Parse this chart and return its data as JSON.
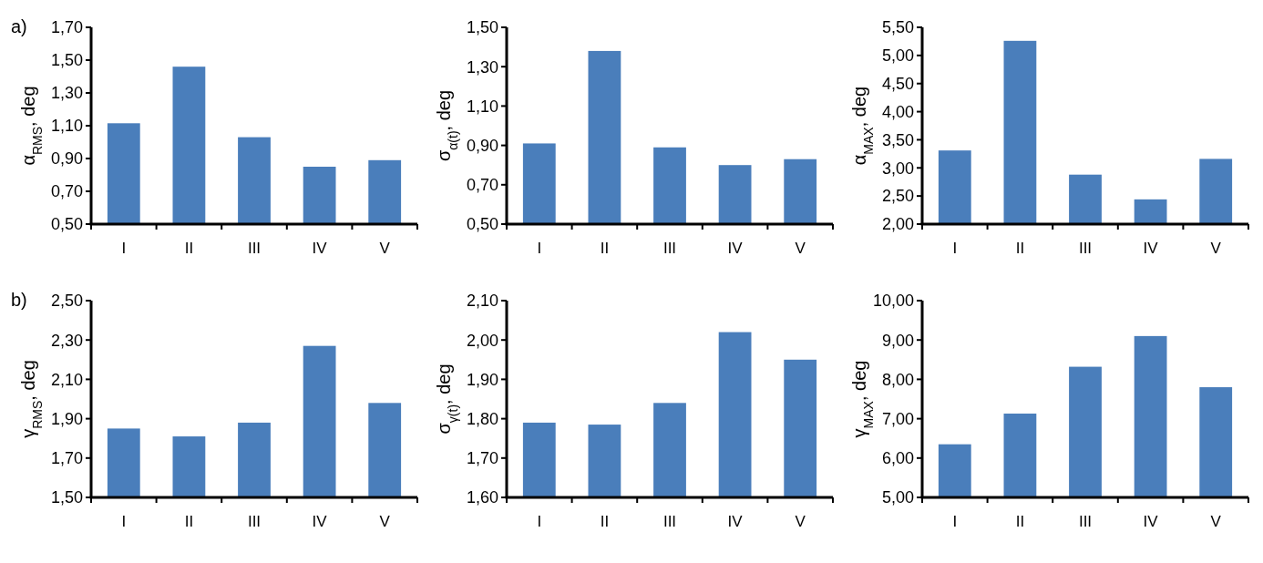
{
  "chart_data": [
    {
      "type": "bar",
      "annotations": [
        "a)"
      ],
      "ylabel": "α$_{RMS}$, deg",
      "categories": [
        "I",
        "II",
        "III",
        "IV",
        "V"
      ],
      "values": [
        1.115,
        1.46,
        1.03,
        0.85,
        0.89
      ],
      "color": "#4a7ebb",
      "ylim": [
        0.5,
        1.7
      ],
      "yticks": [
        {
          "value": 0.5,
          "label": "0,50"
        },
        {
          "value": 0.7,
          "label": "0,70"
        },
        {
          "value": 0.9,
          "label": "0,90"
        },
        {
          "value": 1.1,
          "label": "1,10"
        },
        {
          "value": 1.3,
          "label": "1,30"
        },
        {
          "value": 1.5,
          "label": "1,50"
        },
        {
          "value": 1.7,
          "label": "1,70"
        }
      ]
    },
    {
      "type": "bar",
      "ylabel": "σ$_{α(t)}$, deg",
      "categories": [
        "I",
        "II",
        "III",
        "IV",
        "V"
      ],
      "values": [
        0.91,
        1.38,
        0.89,
        0.8,
        0.83
      ],
      "color": "#4a7ebb",
      "ylim": [
        0.5,
        1.5
      ],
      "yticks": [
        {
          "value": 0.5,
          "label": "0,50"
        },
        {
          "value": 0.7,
          "label": "0,70"
        },
        {
          "value": 0.9,
          "label": "0,90"
        },
        {
          "value": 1.1,
          "label": "1,10"
        },
        {
          "value": 1.3,
          "label": "1,30"
        },
        {
          "value": 1.5,
          "label": "1,50"
        }
      ]
    },
    {
      "type": "bar",
      "ylabel": "α$_{MAX}$, deg",
      "categories": [
        "I",
        "II",
        "III",
        "IV",
        "V"
      ],
      "values": [
        3.31,
        5.26,
        2.88,
        2.44,
        3.16
      ],
      "color": "#4a7ebb",
      "ylim": [
        2,
        5.5
      ],
      "yticks": [
        {
          "value": 2,
          "label": "2,00"
        },
        {
          "value": 2.5,
          "label": "2,50"
        },
        {
          "value": 3,
          "label": "3,00"
        },
        {
          "value": 3.5,
          "label": "3,50"
        },
        {
          "value": 4,
          "label": "4,00"
        },
        {
          "value": 4.5,
          "label": "4,50"
        },
        {
          "value": 5,
          "label": "5,00"
        },
        {
          "value": 5.5,
          "label": "5,50"
        }
      ]
    },
    {
      "type": "bar",
      "annotations": [
        "b)"
      ],
      "ylabel": "γ$_{RMS}$, deg",
      "categories": [
        "I",
        "II",
        "III",
        "IV",
        "V"
      ],
      "values": [
        1.85,
        1.81,
        1.88,
        2.27,
        1.98
      ],
      "color": "#4a7ebb",
      "ylim": [
        1.5,
        2.5
      ],
      "yticks": [
        {
          "value": 1.5,
          "label": "1,50"
        },
        {
          "value": 1.7,
          "label": "1,70"
        },
        {
          "value": 1.9,
          "label": "1,90"
        },
        {
          "value": 2.1,
          "label": "2,10"
        },
        {
          "value": 2.3,
          "label": "2,30"
        },
        {
          "value": 2.5,
          "label": "2,50"
        }
      ]
    },
    {
      "type": "bar",
      "ylabel": "σ$_{γ(t)}$, deg",
      "categories": [
        "I",
        "II",
        "III",
        "IV",
        "V"
      ],
      "values": [
        1.79,
        1.785,
        1.84,
        2.02,
        1.95
      ],
      "color": "#4a7ebb",
      "ylim": [
        1.6,
        2.1
      ],
      "yticks": [
        {
          "value": 1.6,
          "label": "1,60"
        },
        {
          "value": 1.7,
          "label": "1,70"
        },
        {
          "value": 1.8,
          "label": "1,80"
        },
        {
          "value": 1.9,
          "label": "1,90"
        },
        {
          "value": 2,
          "label": "2,00"
        },
        {
          "value": 2.1,
          "label": "2,10"
        }
      ]
    },
    {
      "type": "bar",
      "ylabel": "γ$_{MAX}$, deg",
      "categories": [
        "I",
        "II",
        "III",
        "IV",
        "V"
      ],
      "values": [
        6.35,
        7.13,
        8.32,
        9.1,
        7.8
      ],
      "color": "#4a7ebb",
      "ylim": [
        5,
        10
      ],
      "yticks": [
        {
          "value": 5,
          "label": "5,00"
        },
        {
          "value": 6,
          "label": "6,00"
        },
        {
          "value": 7,
          "label": "7,00"
        },
        {
          "value": 8,
          "label": "8,00"
        },
        {
          "value": 9,
          "label": "9,00"
        },
        {
          "value": 10,
          "label": "10,00"
        }
      ]
    }
  ]
}
